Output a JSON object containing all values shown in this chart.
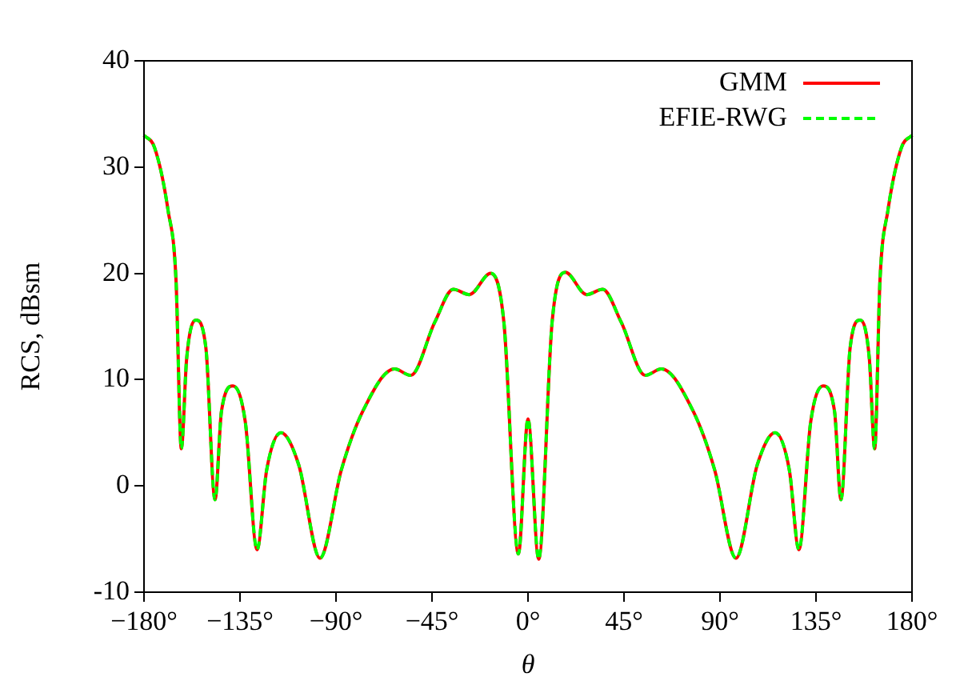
{
  "chart_data": {
    "type": "line",
    "xlabel": "θ",
    "ylabel": "RCS, dBsm",
    "x": [
      -180,
      -175,
      -168.7,
      -165,
      -162.5,
      -160,
      -155.7,
      -151,
      -146.7,
      -143.7,
      -138.3,
      -132.5,
      -127,
      -122.5,
      -115.8,
      -107.5,
      -97.5,
      -87.5,
      -77.5,
      -62.5,
      -55,
      -43.7,
      -35,
      -27.5,
      -17.5,
      -11.3,
      -4.5,
      0,
      5,
      11.3,
      17.5,
      27.5,
      35,
      43.7,
      55,
      62.5,
      77.5,
      87.5,
      97.5,
      107.5,
      115.8,
      122.5,
      127,
      132.5,
      138.3,
      143.7,
      146.7,
      151,
      155.7,
      160,
      162.5,
      165,
      168.7,
      175,
      180
    ],
    "series": [
      {
        "name": "GMM",
        "color": "#ff0000",
        "line_style": "solid",
        "values": [
          33,
          31.8,
          25.9,
          19.4,
          3.5,
          12,
          15.6,
          13,
          -1.3,
          7,
          9.4,
          6,
          -6,
          1.5,
          5,
          2,
          -6.8,
          1.5,
          7,
          11,
          10.4,
          15.4,
          18.5,
          18,
          20,
          15.4,
          -6.4,
          6.3,
          -6.9,
          15.4,
          20.1,
          18,
          18.5,
          15.4,
          10.4,
          11,
          7,
          1.5,
          -6.8,
          2,
          5,
          1.5,
          -6,
          6,
          9.4,
          7,
          -1.3,
          13,
          15.6,
          12,
          3.5,
          19.4,
          25.9,
          31.8,
          33
        ]
      },
      {
        "name": "EFIE-RWG",
        "color": "#00ff00",
        "line_style": "dashed",
        "values": [
          33,
          31.8,
          25.9,
          19.4,
          3.5,
          12,
          15.6,
          13,
          -1.3,
          7,
          9.4,
          6,
          -6,
          1.5,
          5,
          2,
          -6.8,
          1.5,
          7,
          11,
          10.4,
          15.4,
          18.5,
          18,
          20,
          15.4,
          -6.4,
          6.3,
          -6.9,
          15.4,
          20.1,
          18,
          18.5,
          15.4,
          10.4,
          11,
          7,
          1.5,
          -6.8,
          2,
          5,
          1.5,
          -6,
          6,
          9.4,
          7,
          -1.3,
          13,
          15.6,
          12,
          3.5,
          19.4,
          25.9,
          31.8,
          33
        ]
      }
    ],
    "xlim": [
      -180,
      180
    ],
    "xticks": [
      {
        "value": -180,
        "label": "−180°"
      },
      {
        "value": -135,
        "label": "−135°"
      },
      {
        "value": -90,
        "label": "−90°"
      },
      {
        "value": -45,
        "label": "−45°"
      },
      {
        "value": 0,
        "label": "0°"
      },
      {
        "value": 45,
        "label": "45°"
      },
      {
        "value": 90,
        "label": "90°"
      },
      {
        "value": 135,
        "label": "135°"
      },
      {
        "value": 180,
        "label": "180°"
      }
    ],
    "ylim": [
      -10,
      40
    ],
    "yticks": [
      -10,
      0,
      10,
      20,
      30,
      40
    ],
    "grid": false,
    "legend": "top right",
    "marker": "none"
  }
}
